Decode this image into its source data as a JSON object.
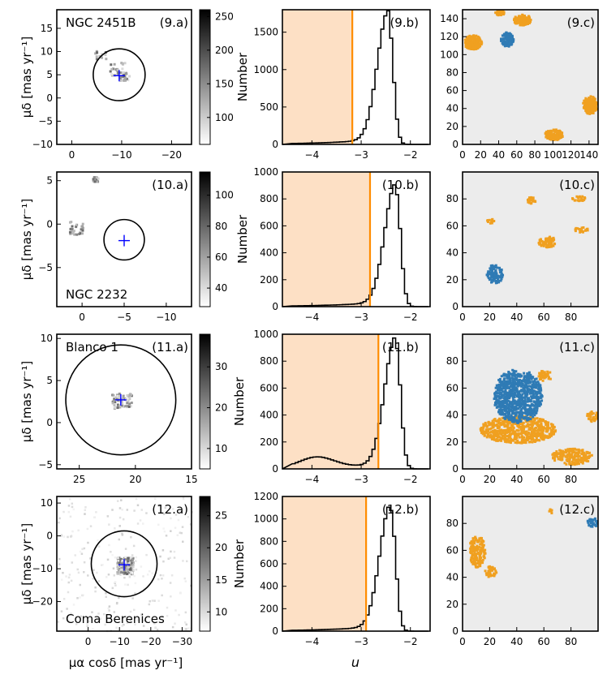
{
  "figure": {
    "column_a": {
      "ylabel": "μδ [mas yr⁻¹]",
      "xlabel": "μα cosδ [mas yr⁻¹]"
    },
    "column_b": {
      "ylabel": "Number",
      "xlabel": "u"
    }
  },
  "colors": {
    "threshold_line": "#ff8c00",
    "shaded_region": "#fde0c5",
    "cluster_pixels": "#2f7bb5",
    "other_pixels": "#f0a020",
    "background_grid": "#ececec",
    "circle": "#000000",
    "center_marker": "#0000ff"
  },
  "chart_data": [
    {
      "panel": "9.a",
      "type": "heatmap",
      "panel_label": "(9.a)",
      "name_label": "NGC 2451B",
      "xlim": [
        3,
        -24
      ],
      "ylim": [
        -10,
        19
      ],
      "xticks": [
        "0",
        "−10",
        "−20"
      ],
      "yticks": [
        "−10",
        "−5",
        "0",
        "5",
        "10",
        "15"
      ],
      "colorbar_ticks": [
        "100",
        "150",
        "200",
        "250"
      ],
      "colorbar_range": [
        60,
        260
      ],
      "circle_center": [
        -9.5,
        5
      ],
      "circle_radius": 5.2,
      "marker": [
        -9.5,
        4.8
      ]
    },
    {
      "panel": "9.b",
      "type": "histogram",
      "panel_label": "(9.b)",
      "xlim": [
        -4.6,
        -1.6
      ],
      "ylim": [
        0,
        1800
      ],
      "xticks": [
        "−4",
        "−3",
        "−2"
      ],
      "yticks": [
        "0",
        "500",
        "1000",
        "1500"
      ],
      "threshold": -3.18,
      "peak_u": -2.45,
      "peak_count": 1700
    },
    {
      "panel": "9.c",
      "type": "map",
      "panel_label": "(9.c)",
      "xlim": [
        0,
        150
      ],
      "ylim": [
        0,
        150
      ],
      "xticks": [
        "0",
        "20",
        "40",
        "60",
        "80",
        "100",
        "120",
        "140"
      ],
      "yticks": [
        "0",
        "20",
        "40",
        "60",
        "80",
        "100",
        "120",
        "140"
      ]
    },
    {
      "panel": "10.a",
      "type": "heatmap",
      "panel_label": "(10.a)",
      "name_label": "NGC 2232",
      "xlim": [
        3,
        -13
      ],
      "ylim": [
        -9.5,
        6
      ],
      "xticks": [
        "0",
        "−5",
        "−10"
      ],
      "yticks": [
        "−5",
        "0",
        "5"
      ],
      "colorbar_ticks": [
        "40",
        "60",
        "80",
        "100"
      ],
      "colorbar_range": [
        28,
        115
      ],
      "circle_center": [
        -5,
        -1.8
      ],
      "circle_radius": 2.4,
      "marker": [
        -5,
        -1.9
      ]
    },
    {
      "panel": "10.b",
      "type": "histogram",
      "panel_label": "(10.b)",
      "xlim": [
        -4.6,
        -1.6
      ],
      "ylim": [
        0,
        1000
      ],
      "xticks": [
        "−4",
        "−3",
        "−2"
      ],
      "yticks": [
        "0",
        "200",
        "400",
        "600",
        "800",
        "1000"
      ],
      "threshold": -2.82,
      "peak_u": -2.3,
      "peak_count": 870
    },
    {
      "panel": "10.c",
      "type": "map",
      "panel_label": "(10.c)",
      "xlim": [
        0,
        100
      ],
      "ylim": [
        0,
        100
      ],
      "xticks": [
        "0",
        "20",
        "40",
        "60",
        "80"
      ],
      "yticks": [
        "0",
        "20",
        "40",
        "60",
        "80"
      ]
    },
    {
      "panel": "11.a",
      "type": "heatmap",
      "panel_label": "(11.a)",
      "name_label": "Blanco 1",
      "xlim": [
        27,
        15
      ],
      "ylim": [
        -5.5,
        10.5
      ],
      "xticks": [
        "25",
        "20",
        "15"
      ],
      "yticks": [
        "−5",
        "0",
        "5",
        "10"
      ],
      "colorbar_ticks": [
        "10",
        "20",
        "30"
      ],
      "colorbar_range": [
        5,
        38
      ],
      "circle_center": [
        21.3,
        2.7
      ],
      "circle_radius": 4.9,
      "marker": [
        21.3,
        2.7
      ]
    },
    {
      "panel": "11.b",
      "type": "histogram",
      "panel_label": "(11.b)",
      "xlim": [
        -4.6,
        -1.6
      ],
      "ylim": [
        0,
        1000
      ],
      "xticks": [
        "−4",
        "−3",
        "−2"
      ],
      "yticks": [
        "0",
        "200",
        "400",
        "600",
        "800",
        "1000"
      ],
      "threshold": -2.65,
      "peak_u": -2.3,
      "peak_count": 935
    },
    {
      "panel": "11.c",
      "type": "map",
      "panel_label": "(11.c)",
      "xlim": [
        0,
        100
      ],
      "ylim": [
        0,
        100
      ],
      "xticks": [
        "0",
        "20",
        "40",
        "60",
        "80"
      ],
      "yticks": [
        "0",
        "20",
        "40",
        "60",
        "80"
      ]
    },
    {
      "panel": "12.a",
      "type": "heatmap",
      "panel_label": "(12.a)",
      "name_label": "Coma Berenices",
      "xlim": [
        10,
        -33
      ],
      "ylim": [
        -29,
        12
      ],
      "xticks": [
        "0",
        "−10",
        "−20",
        "−30"
      ],
      "yticks": [
        "−20",
        "−10",
        "0",
        "10"
      ],
      "colorbar_ticks": [
        "10",
        "15",
        "20",
        "25"
      ],
      "colorbar_range": [
        7,
        28
      ],
      "circle_center": [
        -11.5,
        -8.5
      ],
      "circle_radius": 10.5,
      "marker": [
        -11.5,
        -8.8
      ]
    },
    {
      "panel": "12.b",
      "type": "histogram",
      "panel_label": "(12.b)",
      "xlim": [
        -4.6,
        -1.6
      ],
      "ylim": [
        0,
        1200
      ],
      "xticks": [
        "−4",
        "−3",
        "−2"
      ],
      "yticks": [
        "0",
        "200",
        "400",
        "600",
        "800",
        "1000",
        "1200"
      ],
      "threshold": -2.9,
      "peak_u": -2.4,
      "peak_count": 1080
    },
    {
      "panel": "12.c",
      "type": "map",
      "panel_label": "(12.c)",
      "xlim": [
        0,
        100
      ],
      "ylim": [
        0,
        100
      ],
      "xticks": [
        "0",
        "20",
        "40",
        "60",
        "80"
      ],
      "yticks": [
        "0",
        "20",
        "40",
        "60",
        "80"
      ]
    }
  ]
}
